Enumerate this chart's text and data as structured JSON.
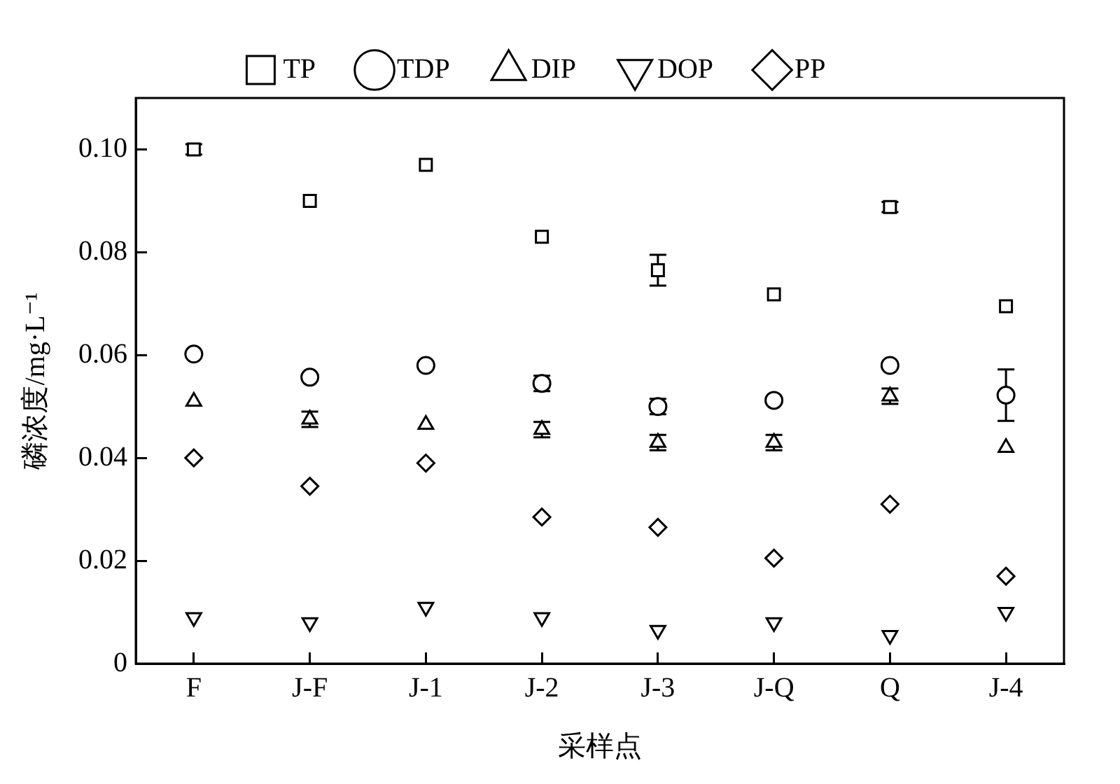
{
  "chart_data": {
    "type": "scatter",
    "xlabel": "采样点",
    "ylabel": "磷浓度/mg·L⁻¹",
    "categories": [
      "F",
      "J-F",
      "J-1",
      "J-2",
      "J-3",
      "J-Q",
      "Q",
      "J-4"
    ],
    "ylim": [
      0,
      0.11
    ],
    "yticks": [
      0,
      0.02,
      0.04,
      0.06,
      0.08,
      {
        "value": 0.1,
        "label": "0.10"
      }
    ],
    "grid": false,
    "legend": "top",
    "series": [
      {
        "name": "TP",
        "color": "#000000",
        "marker": "square",
        "values": [
          0.1,
          0.09,
          0.097,
          0.083,
          0.0765,
          0.0718,
          0.0888,
          0.0695
        ],
        "errors": [
          0.001,
          null,
          null,
          null,
          0.003,
          null,
          0.001,
          null
        ]
      },
      {
        "name": "TDP",
        "color": "#000000",
        "marker": "circle",
        "values": [
          0.0602,
          0.0557,
          0.058,
          0.0545,
          0.05,
          0.0512,
          0.058,
          0.0522
        ],
        "errors": [
          null,
          null,
          null,
          0.0015,
          0.0015,
          null,
          null,
          0.005
        ]
      },
      {
        "name": "DIP",
        "color": "#000000",
        "marker": "triangle",
        "values": [
          0.051,
          0.0475,
          0.0465,
          0.0455,
          0.043,
          0.043,
          0.052,
          0.042
        ],
        "errors": [
          null,
          0.0015,
          null,
          0.0015,
          0.0015,
          0.0015,
          0.0015,
          null
        ]
      },
      {
        "name": "DOP",
        "color": "#000000",
        "marker": "triangle-down",
        "values": [
          0.009,
          0.008,
          0.011,
          0.009,
          0.0065,
          0.008,
          0.0055,
          0.01
        ]
      },
      {
        "name": "PP",
        "color": "#000000",
        "marker": "diamond",
        "values": [
          0.04,
          0.0345,
          0.039,
          0.0285,
          0.0265,
          0.0205,
          0.031,
          0.017
        ]
      }
    ]
  }
}
